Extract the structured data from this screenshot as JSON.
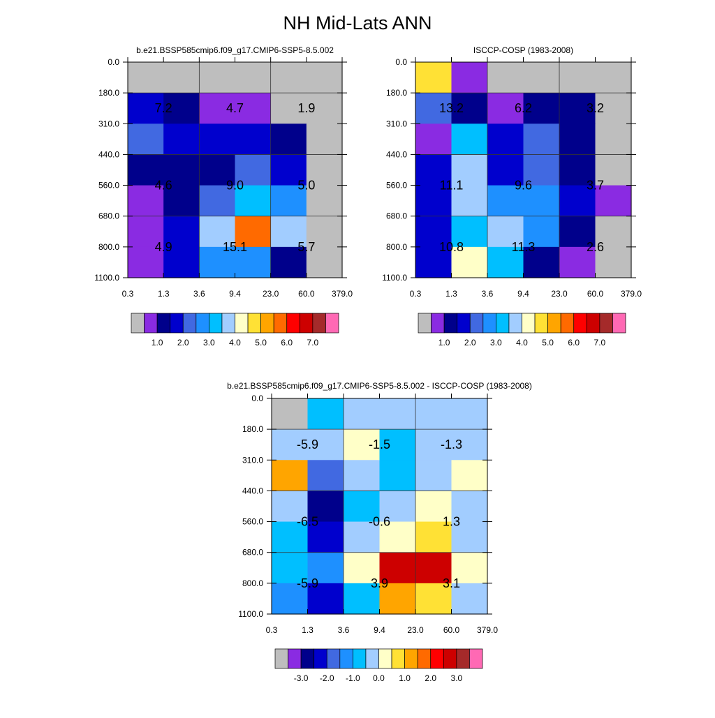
{
  "figure": {
    "title": "NH Mid-Lats ANN"
  },
  "palettes": {
    "abs": [
      "#bebebe",
      "#8a2be2",
      "#00008b",
      "#0000cd",
      "#4169e1",
      "#1e90ff",
      "#00bfff",
      "#a2cdff",
      "#ffffc8",
      "#ffe135",
      "#ffa500",
      "#ff6a00",
      "#ff0000",
      "#cd0000",
      "#a52a2a",
      "#ff69b4"
    ],
    "diff": [
      "#bebebe",
      "#8a2be2",
      "#00008b",
      "#0000cd",
      "#4169e1",
      "#1e90ff",
      "#00bfff",
      "#a2cdff",
      "#ffffc8",
      "#ffe135",
      "#ffa500",
      "#ff6a00",
      "#ff0000",
      "#cd0000",
      "#a52a2a",
      "#ff69b4"
    ]
  },
  "chart_data": [
    {
      "type": "heatmap",
      "title": "b.e21.BSSP585cmip6.f09_g17.CMIP6-SSP5-8.5.002",
      "x_ticks": [
        "0.3",
        "1.3",
        "3.6",
        "9.4",
        "23.0",
        "60.0",
        "379.0"
      ],
      "y_ticks": [
        "0.0",
        "180.0",
        "310.0",
        "440.0",
        "560.0",
        "680.0",
        "800.0",
        "1100.0"
      ],
      "cell_colors": [
        [
          0,
          0,
          0,
          0,
          0,
          0
        ],
        [
          3,
          2,
          1,
          1,
          0,
          0
        ],
        [
          4,
          3,
          3,
          3,
          2,
          0
        ],
        [
          2,
          2,
          2,
          4,
          3,
          0
        ],
        [
          1,
          2,
          4,
          6,
          5,
          0
        ],
        [
          1,
          3,
          7,
          11,
          7,
          0
        ],
        [
          1,
          3,
          5,
          5,
          2,
          0
        ]
      ],
      "annotations": [
        {
          "row": 1.5,
          "col": 1.0,
          "text": "7.2"
        },
        {
          "row": 1.5,
          "col": 3.0,
          "text": "4.7"
        },
        {
          "row": 1.5,
          "col": 5.0,
          "text": "1.9"
        },
        {
          "row": 4.0,
          "col": 1.0,
          "text": "4.6"
        },
        {
          "row": 4.0,
          "col": 3.0,
          "text": "9.0"
        },
        {
          "row": 4.0,
          "col": 5.0,
          "text": "5.0"
        },
        {
          "row": 6.0,
          "col": 1.0,
          "text": "4.9"
        },
        {
          "row": 6.0,
          "col": 3.0,
          "text": "15.1"
        },
        {
          "row": 6.0,
          "col": 5.0,
          "text": "5.7"
        }
      ],
      "colorbar": {
        "palette": "abs",
        "labels": [
          "1.0",
          "2.0",
          "3.0",
          "4.0",
          "5.0",
          "6.0",
          "7.0"
        ]
      }
    },
    {
      "type": "heatmap",
      "title": "ISCCP-COSP (1983-2008)",
      "x_ticks": [
        "0.3",
        "1.3",
        "3.6",
        "9.4",
        "23.0",
        "60.0",
        "379.0"
      ],
      "y_ticks": [
        "0.0",
        "180.0",
        "310.0",
        "440.0",
        "560.0",
        "680.0",
        "800.0",
        "1100.0"
      ],
      "cell_colors": [
        [
          9,
          1,
          0,
          0,
          0,
          0
        ],
        [
          4,
          2,
          1,
          2,
          2,
          0
        ],
        [
          1,
          6,
          3,
          4,
          2,
          0
        ],
        [
          3,
          7,
          3,
          4,
          2,
          0
        ],
        [
          3,
          7,
          5,
          5,
          3,
          1
        ],
        [
          3,
          6,
          7,
          5,
          2,
          0
        ],
        [
          3,
          8,
          6,
          2,
          1,
          0
        ]
      ],
      "annotations": [
        {
          "row": 1.5,
          "col": 1.0,
          "text": "13.2"
        },
        {
          "row": 1.5,
          "col": 3.0,
          "text": "6.2"
        },
        {
          "row": 1.5,
          "col": 5.0,
          "text": "3.2"
        },
        {
          "row": 4.0,
          "col": 1.0,
          "text": "11.1"
        },
        {
          "row": 4.0,
          "col": 3.0,
          "text": "9.6"
        },
        {
          "row": 4.0,
          "col": 5.0,
          "text": "3.7"
        },
        {
          "row": 6.0,
          "col": 1.0,
          "text": "10.8"
        },
        {
          "row": 6.0,
          "col": 3.0,
          "text": "11.3"
        },
        {
          "row": 6.0,
          "col": 5.0,
          "text": "2.6"
        }
      ],
      "colorbar": {
        "palette": "abs",
        "labels": [
          "1.0",
          "2.0",
          "3.0",
          "4.0",
          "5.0",
          "6.0",
          "7.0"
        ]
      }
    },
    {
      "type": "heatmap",
      "title": "b.e21.BSSP585cmip6.f09_g17.CMIP6-SSP5-8.5.002 - ISCCP-COSP (1983-2008)",
      "x_ticks": [
        "0.3",
        "1.3",
        "3.6",
        "9.4",
        "23.0",
        "60.0",
        "379.0"
      ],
      "y_ticks": [
        "0.0",
        "180.0",
        "310.0",
        "440.0",
        "560.0",
        "680.0",
        "800.0",
        "1100.0"
      ],
      "cell_colors": [
        [
          0,
          6,
          7,
          7,
          7,
          7
        ],
        [
          7,
          7,
          8,
          6,
          7,
          7
        ],
        [
          10,
          4,
          7,
          6,
          7,
          8
        ],
        [
          7,
          2,
          6,
          7,
          8,
          7
        ],
        [
          6,
          3,
          7,
          8,
          9,
          7
        ],
        [
          6,
          5,
          8,
          13,
          13,
          8
        ],
        [
          5,
          3,
          6,
          10,
          9,
          7
        ]
      ],
      "annotations": [
        {
          "row": 1.5,
          "col": 1.0,
          "text": "-5.9"
        },
        {
          "row": 1.5,
          "col": 3.0,
          "text": "-1.5"
        },
        {
          "row": 1.5,
          "col": 5.0,
          "text": "-1.3"
        },
        {
          "row": 4.0,
          "col": 1.0,
          "text": "-6.5"
        },
        {
          "row": 4.0,
          "col": 3.0,
          "text": "-0.6"
        },
        {
          "row": 4.0,
          "col": 5.0,
          "text": "1.3"
        },
        {
          "row": 6.0,
          "col": 1.0,
          "text": "-5.9"
        },
        {
          "row": 6.0,
          "col": 3.0,
          "text": "3.9"
        },
        {
          "row": 6.0,
          "col": 5.0,
          "text": "3.1"
        }
      ],
      "colorbar": {
        "palette": "diff",
        "labels": [
          "-3.0",
          "-2.0",
          "-1.0",
          "0.0",
          "1.0",
          "2.0",
          "3.0"
        ]
      }
    }
  ]
}
